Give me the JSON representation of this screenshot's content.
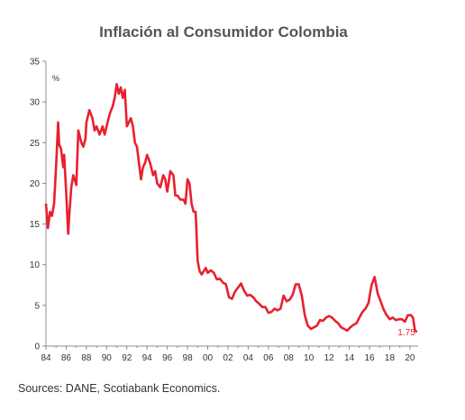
{
  "chart_data": {
    "type": "line",
    "title": "Inflación al Consumidor Colombia",
    "ylabel": "%",
    "xlabel": "",
    "ylim": [
      0,
      35
    ],
    "xlim": [
      1984,
      2020.75
    ],
    "grid": false,
    "yticks": [
      "0",
      "5",
      "10",
      "15",
      "20",
      "25",
      "30",
      "35"
    ],
    "xticks": [
      "84",
      "86",
      "88",
      "90",
      "92",
      "94",
      "96",
      "98",
      "00",
      "02",
      "04",
      "06",
      "08",
      "10",
      "12",
      "14",
      "16",
      "18",
      "20"
    ],
    "line_color": "#e8202f",
    "end_label": "1.75",
    "series": [
      {
        "x": [
          1984.0,
          1984.2,
          1984.4,
          1984.6,
          1984.8,
          1985.0,
          1985.2,
          1985.3,
          1985.5,
          1985.7,
          1985.8,
          1986.0,
          1986.2,
          1986.3,
          1986.5,
          1986.7,
          1987.0,
          1987.2,
          1987.5,
          1987.7,
          1987.9,
          1988.0,
          1988.3,
          1988.6,
          1988.8,
          1989.0,
          1989.3,
          1989.6,
          1989.8,
          1990.0,
          1990.3,
          1990.6,
          1990.8,
          1991.0,
          1991.2,
          1991.4,
          1991.6,
          1991.8,
          1992.0,
          1992.2,
          1992.4,
          1992.6,
          1992.8,
          1993.0,
          1993.2,
          1993.4,
          1993.6,
          1993.8,
          1994.0,
          1994.3,
          1994.6,
          1994.8,
          1995.0,
          1995.3,
          1995.6,
          1995.8,
          1996.0,
          1996.3,
          1996.6,
          1996.8,
          1997.0,
          1997.3,
          1997.6,
          1997.8,
          1998.0,
          1998.2,
          1998.4,
          1998.6,
          1998.8,
          1999.0,
          1999.2,
          1999.4,
          1999.6,
          1999.8,
          2000.0,
          2000.3,
          2000.6,
          2000.9,
          2001.2,
          2001.5,
          2001.8,
          2002.1,
          2002.4,
          2002.7,
          2003.0,
          2003.3,
          2003.6,
          2003.9,
          2004.2,
          2004.5,
          2004.8,
          2005.1,
          2005.4,
          2005.7,
          2006.0,
          2006.3,
          2006.6,
          2006.9,
          2007.2,
          2007.5,
          2007.8,
          2008.1,
          2008.4,
          2008.7,
          2009.0,
          2009.3,
          2009.6,
          2009.9,
          2010.2,
          2010.5,
          2010.8,
          2011.1,
          2011.4,
          2011.7,
          2012.0,
          2012.3,
          2012.6,
          2012.9,
          2013.2,
          2013.5,
          2013.8,
          2014.1,
          2014.4,
          2014.7,
          2015.0,
          2015.3,
          2015.6,
          2015.9,
          2016.2,
          2016.5,
          2016.8,
          2017.1,
          2017.4,
          2017.7,
          2018.0,
          2018.3,
          2018.6,
          2018.9,
          2019.2,
          2019.5,
          2019.8,
          2020.1,
          2020.3,
          2020.5,
          2020.7
        ],
        "y": [
          17.5,
          14.5,
          16.5,
          16.0,
          17.5,
          22.0,
          27.5,
          24.8,
          24.2,
          22.0,
          23.5,
          19.0,
          13.8,
          16.0,
          19.5,
          21.0,
          19.8,
          26.5,
          25.0,
          24.5,
          25.5,
          27.5,
          29.0,
          28.0,
          26.5,
          27.0,
          26.0,
          27.0,
          26.0,
          27.0,
          28.5,
          29.5,
          30.5,
          32.2,
          31.0,
          31.8,
          30.5,
          31.5,
          27.0,
          27.5,
          28.0,
          27.0,
          25.0,
          24.5,
          22.5,
          20.5,
          22.0,
          22.5,
          23.5,
          22.5,
          21.0,
          21.5,
          20.0,
          19.5,
          21.0,
          20.5,
          19.0,
          21.5,
          21.0,
          18.5,
          18.5,
          18.0,
          18.0,
          17.5,
          20.5,
          20.0,
          17.5,
          16.5,
          16.5,
          10.5,
          9.2,
          8.8,
          9.2,
          9.6,
          9.0,
          9.3,
          9.0,
          8.2,
          8.3,
          7.8,
          7.6,
          6.0,
          5.8,
          6.7,
          7.2,
          7.7,
          6.8,
          6.2,
          6.3,
          6.0,
          5.5,
          5.2,
          4.8,
          4.8,
          4.1,
          4.2,
          4.6,
          4.4,
          4.6,
          6.2,
          5.5,
          5.7,
          6.3,
          7.6,
          7.6,
          6.2,
          3.8,
          2.5,
          2.1,
          2.3,
          2.5,
          3.2,
          3.1,
          3.5,
          3.7,
          3.5,
          3.1,
          2.8,
          2.3,
          2.1,
          1.9,
          2.3,
          2.6,
          2.8,
          3.5,
          4.2,
          4.6,
          5.3,
          7.5,
          8.5,
          6.5,
          5.5,
          4.5,
          3.8,
          3.3,
          3.5,
          3.2,
          3.3,
          3.3,
          3.0,
          3.8,
          3.8,
          3.5,
          1.9,
          1.75
        ]
      }
    ]
  },
  "source_text": "Sources: DANE, Scotiabank Economics."
}
